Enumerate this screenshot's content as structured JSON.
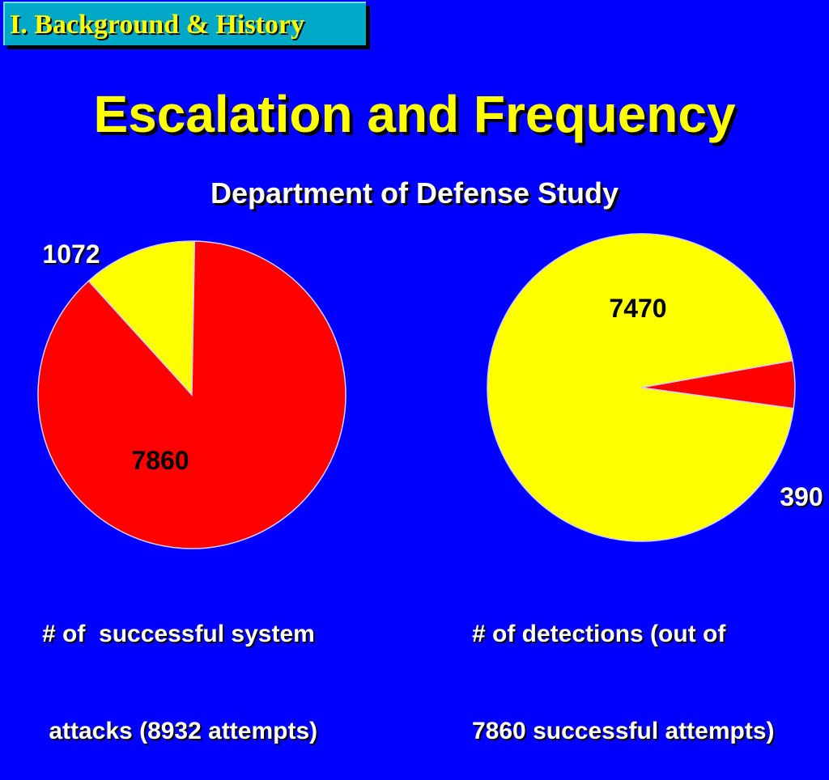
{
  "header": {
    "section_tag": "I. Background & History",
    "title": "Escalation and Frequency",
    "subtitle": "Department of Defense Study"
  },
  "colors": {
    "background": "#0000ff",
    "pie_red": "#ff0000",
    "pie_yellow": "#ffff00",
    "title_text": "#ffff00"
  },
  "chart_data": [
    {
      "type": "pie",
      "title": "",
      "caption_lines": [
        "# of  successful system",
        " attacks (8932 attempts)"
      ],
      "slices": [
        {
          "label": "1072",
          "value": 1072,
          "color": "#ffff00"
        },
        {
          "label": "7860",
          "value": 7860,
          "color": "#ff0000"
        }
      ]
    },
    {
      "type": "pie",
      "title": "",
      "caption_lines": [
        "# of detections (out of",
        "7860 successful attempts)"
      ],
      "slices": [
        {
          "label": "7470",
          "value": 7470,
          "color": "#ffff00"
        },
        {
          "label": "390",
          "value": 390,
          "color": "#ff0000"
        }
      ]
    }
  ]
}
